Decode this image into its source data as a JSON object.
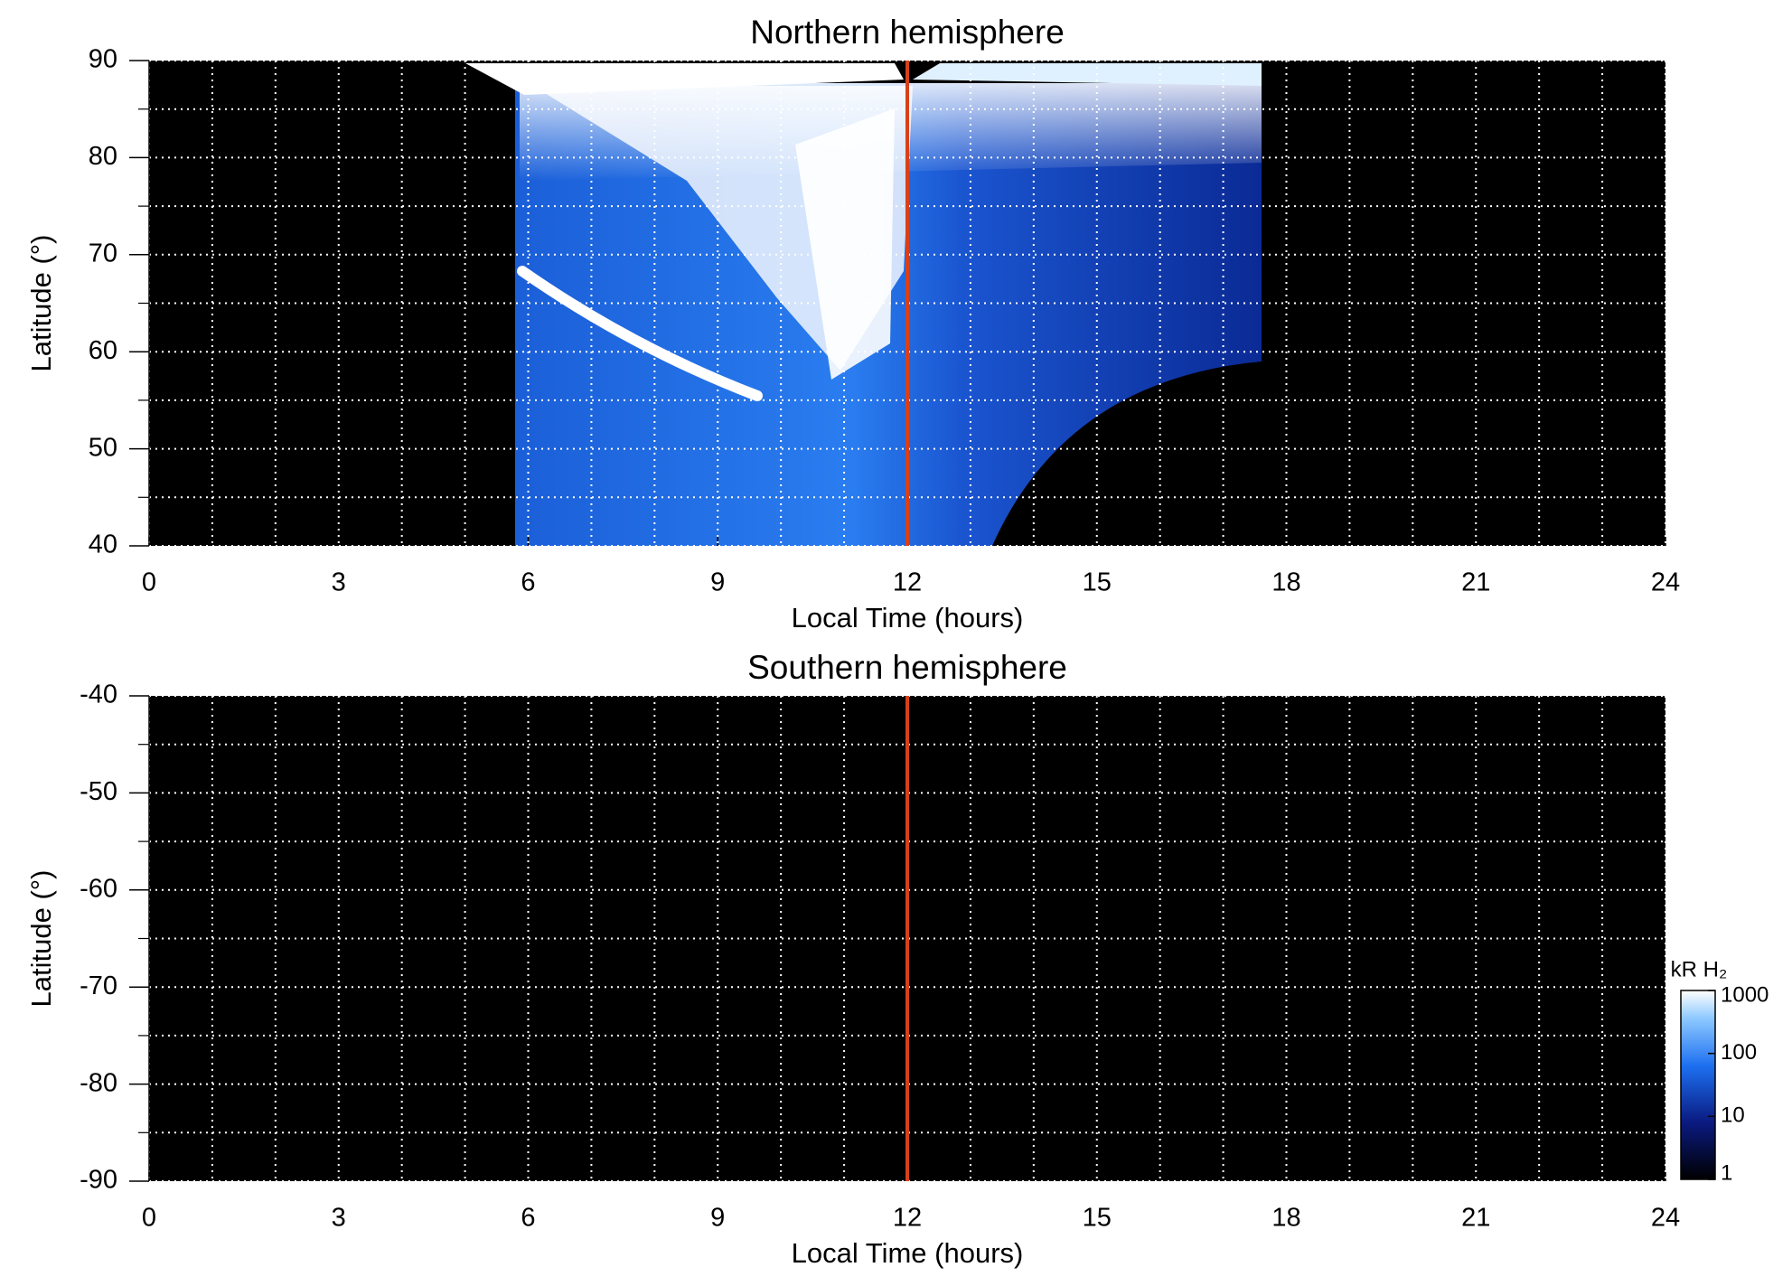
{
  "chart_data": [
    {
      "type": "heatmap",
      "title": "Northern hemisphere",
      "x_label": "Local Time (hours)",
      "y_label": "Latitude (°)",
      "xlim": [
        0,
        24
      ],
      "xticks": [
        0,
        3,
        6,
        9,
        12,
        15,
        18,
        21,
        24
      ],
      "xminor": [
        1,
        2,
        4,
        5,
        7,
        8,
        10,
        11,
        13,
        14,
        16,
        17,
        19,
        20,
        22,
        23
      ],
      "ylim": [
        40,
        90
      ],
      "yticks": [
        40,
        50,
        60,
        70,
        80,
        90
      ],
      "yminor": [
        45,
        55,
        65,
        75,
        85
      ],
      "grid": true,
      "background": "#000000",
      "vline": 12,
      "vline_color": "#d9401a"
    },
    {
      "type": "heatmap",
      "title": "Southern hemisphere",
      "x_label": "Local Time (hours)",
      "y_label": "Latitude (°)",
      "xlim": [
        0,
        24
      ],
      "xticks": [
        0,
        3,
        6,
        9,
        12,
        15,
        18,
        21,
        24
      ],
      "xminor": [
        1,
        2,
        4,
        5,
        7,
        8,
        10,
        11,
        13,
        14,
        16,
        17,
        19,
        20,
        22,
        23
      ],
      "ylim": [
        -90,
        -40
      ],
      "yticks": [
        -90,
        -80,
        -70,
        -60,
        -50,
        -40
      ],
      "yminor": [
        -85,
        -75,
        -65,
        -55,
        -45
      ],
      "grid": true,
      "background": "#000000",
      "vline": 12,
      "vline_color": "#d9401a",
      "colorbar": {
        "label": "kR H₂",
        "lim": [
          1,
          1000
        ],
        "ticks": [
          1,
          10,
          100,
          1000
        ],
        "log": true
      }
    }
  ]
}
